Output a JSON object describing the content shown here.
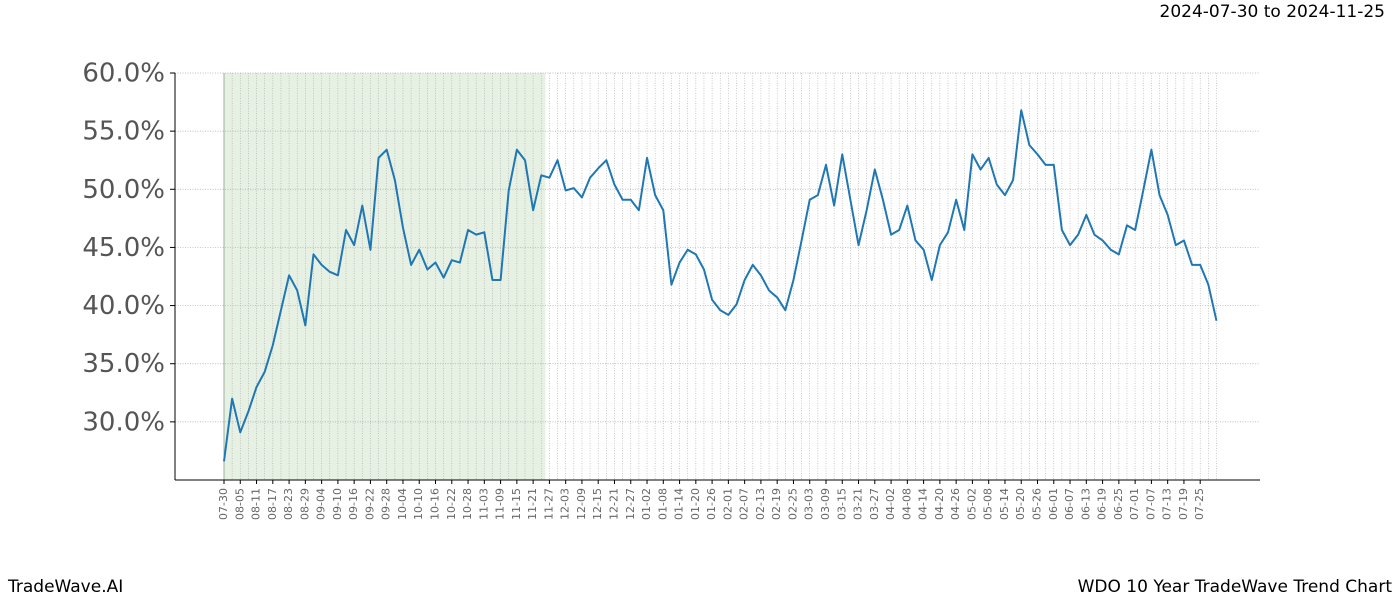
{
  "chart_data": {
    "type": "line",
    "title": "WDO 10 Year TradeWave Trend Chart",
    "subtitle": "2024-07-30 to 2024-11-25",
    "brand": "TradeWave.AI",
    "categories": [
      "07-30",
      null,
      "08-05",
      null,
      "08-11",
      null,
      "08-17",
      null,
      "08-23",
      null,
      "08-29",
      null,
      "09-04",
      null,
      "09-10",
      null,
      "09-16",
      null,
      "09-22",
      null,
      "09-28",
      null,
      "10-04",
      null,
      "10-10",
      null,
      "10-16",
      null,
      "10-22",
      null,
      "10-28",
      null,
      "11-03",
      null,
      "11-09",
      null,
      "11-15",
      null,
      "11-21",
      null,
      "11-27",
      null,
      "12-03",
      null,
      "12-09",
      null,
      "12-15",
      null,
      "12-21",
      null,
      "12-27",
      null,
      "01-02",
      null,
      "01-08",
      null,
      "01-14",
      null,
      "01-20",
      null,
      "01-26",
      null,
      "02-01",
      null,
      "02-07",
      null,
      "02-13",
      null,
      "02-19",
      null,
      "02-25",
      null,
      "03-03",
      null,
      "03-09",
      null,
      "03-15",
      null,
      "03-21",
      null,
      "03-27",
      null,
      "04-02",
      null,
      "04-08",
      null,
      "04-14",
      null,
      "04-20",
      null,
      "04-26",
      null,
      "05-02",
      null,
      "05-08",
      null,
      "05-14",
      null,
      "05-20",
      null,
      "05-26",
      null,
      "06-01",
      null,
      "06-07",
      null,
      "06-13",
      null,
      "06-19",
      null,
      "06-25",
      null,
      "07-01",
      null,
      "07-07",
      null,
      "07-13",
      null,
      "07-19",
      null,
      "07-25",
      null,
      null
    ],
    "series": [
      {
        "color": "#1f77b4",
        "values": [
          26.6,
          32.0,
          29.1,
          30.9,
          33.0,
          34.3,
          36.6,
          39.6,
          42.6,
          41.3,
          38.3,
          44.4,
          43.5,
          42.9,
          42.6,
          46.5,
          45.2,
          48.6,
          44.8,
          52.7,
          53.4,
          50.8,
          46.7,
          43.5,
          44.8,
          43.1,
          43.7,
          42.4,
          43.9,
          43.7,
          46.5,
          46.1,
          46.3,
          42.2,
          42.2,
          49.9,
          53.4,
          52.5,
          48.2,
          51.2,
          51.0,
          52.5,
          49.9,
          50.1,
          49.3,
          51.0,
          51.8,
          52.5,
          50.4,
          49.1,
          49.1,
          48.2,
          52.7,
          49.5,
          48.2,
          41.8,
          43.7,
          44.8,
          44.4,
          43.1,
          40.5,
          39.6,
          39.2,
          40.1,
          42.2,
          43.5,
          42.6,
          41.3,
          40.7,
          39.6,
          42.2,
          45.6,
          49.1,
          49.5,
          52.1,
          48.6,
          53.0,
          49.1,
          45.2,
          48.2,
          51.7,
          49.1,
          46.1,
          46.5,
          48.6,
          45.6,
          44.8,
          42.2,
          45.2,
          46.3,
          49.1,
          46.5,
          53.0,
          51.7,
          52.7,
          50.4,
          49.5,
          50.8,
          56.8,
          53.8,
          53.0,
          52.1,
          52.1,
          46.5,
          45.2,
          46.1,
          47.8,
          46.1,
          45.6,
          44.8,
          44.4,
          46.9,
          46.5,
          49.9,
          53.4,
          49.5,
          47.8,
          45.2,
          45.6,
          43.5,
          43.5,
          41.8,
          38.7
        ]
      }
    ],
    "ylim": [
      25,
      60
    ],
    "yticks": [
      {
        "value": 30,
        "label": "30.0%"
      },
      {
        "value": 35,
        "label": "35.0%"
      },
      {
        "value": 40,
        "label": "40.0%"
      },
      {
        "value": 45,
        "label": "45.0%"
      },
      {
        "value": 50,
        "label": "50.0%"
      },
      {
        "value": 55,
        "label": "55.0%"
      },
      {
        "value": 60,
        "label": "60.0%"
      }
    ],
    "grid": true,
    "highlight_range": [
      0,
      39
    ],
    "highlight_color": "#e6f0e3"
  }
}
